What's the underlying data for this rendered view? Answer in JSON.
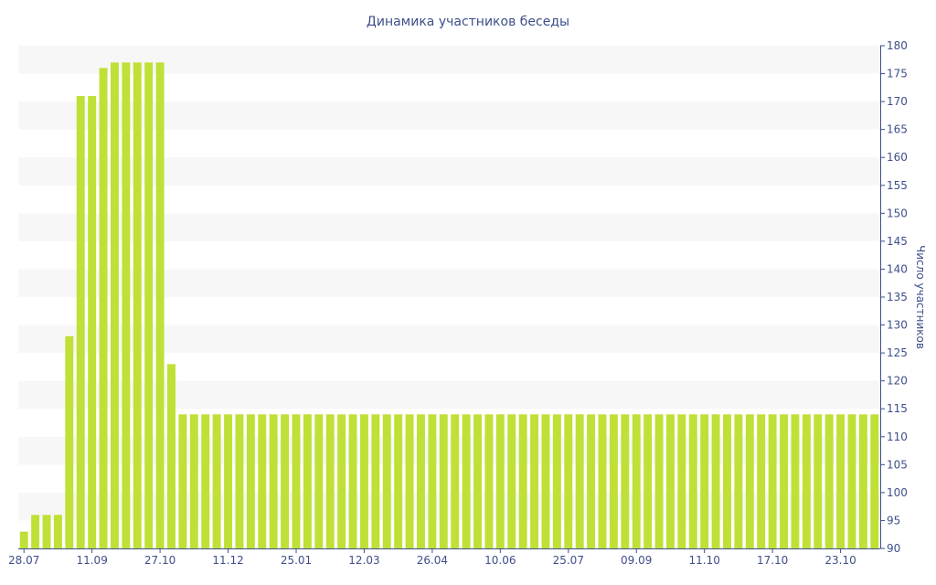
{
  "chart_data": {
    "type": "bar",
    "title": "Динамика участников беседы",
    "xlabel": "",
    "ylabel": "Число участников",
    "ylim": [
      90,
      180
    ],
    "yticks": [
      90,
      95,
      100,
      105,
      110,
      115,
      120,
      125,
      130,
      135,
      140,
      145,
      150,
      155,
      160,
      165,
      170,
      175,
      180
    ],
    "y_axis_position": "right",
    "grid": "horizontal alternating bands",
    "x_tick_labels": [
      "28.07",
      "11.09",
      "27.10",
      "11.12",
      "25.01",
      "12.03",
      "26.04",
      "10.06",
      "25.07",
      "09.09",
      "11.10",
      "17.10",
      "23.10"
    ],
    "x_tick_bar_index": [
      0,
      6,
      12,
      18,
      24,
      30,
      36,
      42,
      48,
      54,
      60,
      66,
      72
    ],
    "values": [
      93,
      96,
      96,
      96,
      128,
      171,
      171,
      176,
      177,
      177,
      177,
      177,
      177,
      123,
      114,
      114,
      114,
      114,
      114,
      114,
      114,
      114,
      114,
      114,
      114,
      114,
      114,
      114,
      114,
      114,
      114,
      114,
      114,
      114,
      114,
      114,
      114,
      114,
      114,
      114,
      114,
      114,
      114,
      114,
      114,
      114,
      114,
      114,
      114,
      114,
      114,
      114,
      114,
      114,
      114,
      114,
      114,
      114,
      114,
      114,
      114,
      114,
      114,
      114,
      114,
      114,
      114,
      114,
      114,
      114,
      114,
      114,
      114,
      114,
      114,
      114
    ],
    "colors": {
      "bar": "#bfe036",
      "band": "#f7f7f7",
      "text": "#3e4f8a",
      "axis": "#3e4f8a"
    }
  }
}
